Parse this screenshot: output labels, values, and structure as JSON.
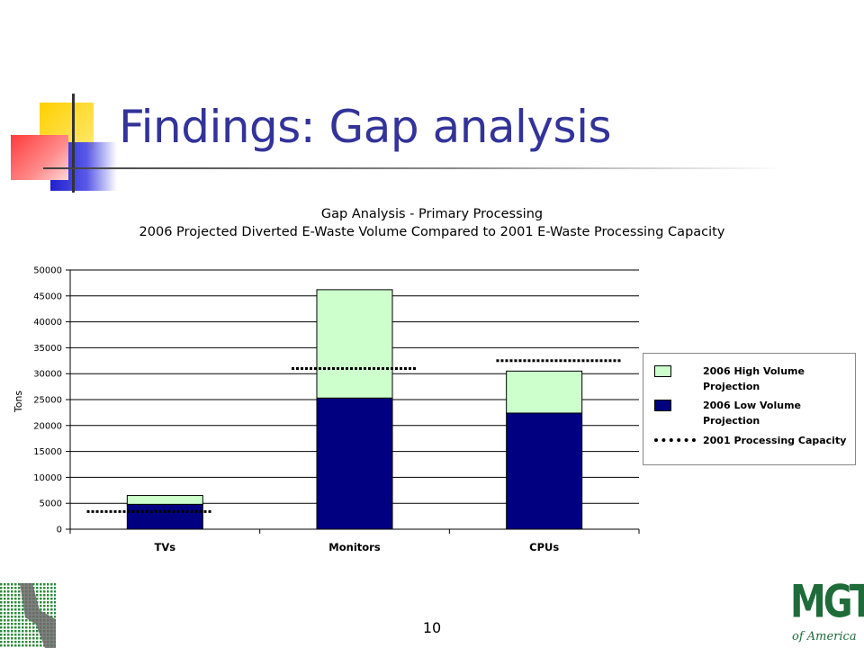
{
  "slide": {
    "title": "Findings: Gap analysis",
    "page_number": "10"
  },
  "logo": {
    "letters": "MGT",
    "subtitle": "of America"
  },
  "chart_data": {
    "type": "bar",
    "stacked": true,
    "title": "Gap Analysis - Primary Processing",
    "subtitle": "2006 Projected Diverted E-Waste Volume Compared to 2001 E-Waste Processing Capacity",
    "ylabel": "Tons",
    "xlabel": "",
    "categories": [
      "TVs",
      "Monitors",
      "CPUs"
    ],
    "ylim": [
      0,
      50000
    ],
    "yticks": [
      0,
      5000,
      10000,
      15000,
      20000,
      25000,
      30000,
      35000,
      40000,
      45000,
      50000
    ],
    "grid": true,
    "legend_position": "right",
    "series": [
      {
        "name": "2006 Low Volume Projection",
        "values": [
          4800,
          25300,
          22400
        ],
        "color": "#000080"
      },
      {
        "name": "2006 High Volume Projection",
        "values": [
          1700,
          20900,
          8100
        ],
        "color": "#ccffcc"
      }
    ],
    "reference_lines": {
      "name": "2001 Processing Capacity",
      "values": [
        3400,
        31000,
        32500
      ],
      "style": "dotted",
      "color": "#000000"
    }
  },
  "colors": {
    "title": "#33339a",
    "low_series": "#000080",
    "high_series": "#ccffcc",
    "gridline": "#000000"
  }
}
